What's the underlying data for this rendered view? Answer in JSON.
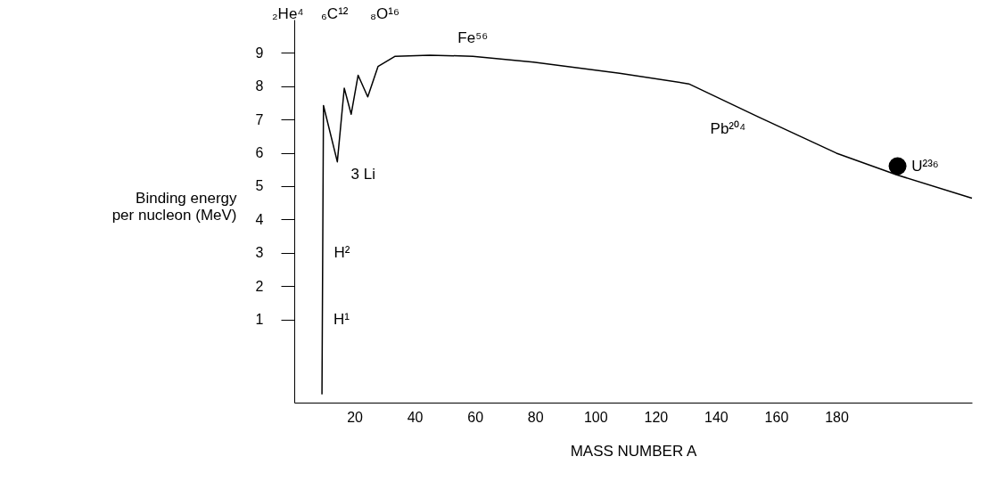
{
  "chart_data": {
    "type": "line",
    "xlabel": "MASS NUMBER A",
    "ylabel": "Binding energy per nucleon (MeV)",
    "xlim": [
      0,
      225
    ],
    "ylim": [
      -1.5,
      10
    ],
    "xticks": [
      20,
      40,
      60,
      80,
      100,
      120,
      140,
      160,
      180
    ],
    "yticks": [
      1,
      2,
      3,
      4,
      5,
      6,
      7,
      8,
      9
    ],
    "grid": false,
    "series": [
      {
        "color": "#000000",
        "marker": "none",
        "x": [
          9.2,
          9.7,
          14.3,
          16.6,
          18.9,
          21.2,
          24.4,
          27.8,
          33.5,
          45,
          59.3,
          79.4,
          108,
          131,
          154,
          180,
          200,
          225
        ],
        "values": [
          -1.25,
          7.42,
          5.73,
          7.94,
          7.16,
          8.33,
          7.68,
          8.59,
          8.9,
          8.93,
          8.9,
          8.72,
          8.39,
          8.07,
          7.08,
          5.99,
          5.34,
          4.64
        ]
      },
      {
        "type": "scatter",
        "color": "#000000",
        "marker": "circle",
        "x": [
          200.3
        ],
        "values": [
          5.6
        ]
      }
    ],
    "annotations": [
      "₂He⁴",
      "₆C¹²",
      "₈O¹⁶",
      {
        "text": "Fe⁵⁶",
        "x": 59.3,
        "y": 8.9
      },
      {
        "text": "Pb²⁰⁴",
        "x": 154,
        "y": 7.08
      },
      {
        "text": "U²³⁶",
        "x": 200.3,
        "y": 5.6
      },
      {
        "text": "3 Li",
        "x": 14.3,
        "y": 5.73
      },
      {
        "text": "H²",
        "x": 9.45,
        "y": 3.0
      },
      {
        "text": "H¹",
        "x": 9.33,
        "y": 1.0
      }
    ]
  }
}
